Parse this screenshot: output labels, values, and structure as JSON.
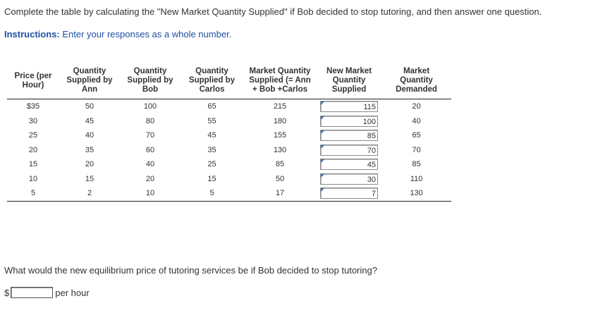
{
  "prompt": "Complete the table by calculating the \"New Market Quantity Supplied\" if Bob decided to stop tutoring, and then answer one question.",
  "instructions": {
    "label": "Instructions:",
    "text": "Enter your responses as a whole number."
  },
  "table": {
    "headers": [
      "Price (per\nHour)",
      "Quantity\nSupplied by\nAnn",
      "Quantity\nSupplied by\nBob",
      "Quantity\nSupplied by\nCarlos",
      "Market Quantity\nSupplied (= Ann\n+ Bob +Carlos",
      "New Market\nQuantity\nSupplied",
      "Market\nQuantity\nDemanded"
    ],
    "rows": [
      {
        "price": "$35",
        "ann": "50",
        "bob": "100",
        "carlos": "65",
        "market": "215",
        "new_market": "115",
        "demanded": "20"
      },
      {
        "price": "30",
        "ann": "45",
        "bob": "80",
        "carlos": "55",
        "market": "180",
        "new_market": "100",
        "demanded": "40"
      },
      {
        "price": "25",
        "ann": "40",
        "bob": "70",
        "carlos": "45",
        "market": "155",
        "new_market": "85",
        "demanded": "65"
      },
      {
        "price": "20",
        "ann": "35",
        "bob": "60",
        "carlos": "35",
        "market": "130",
        "new_market": "70",
        "demanded": "70"
      },
      {
        "price": "15",
        "ann": "20",
        "bob": "40",
        "carlos": "25",
        "market": "85",
        "new_market": "45",
        "demanded": "85"
      },
      {
        "price": "10",
        "ann": "15",
        "bob": "20",
        "carlos": "15",
        "market": "50",
        "new_market": "30",
        "demanded": "110"
      },
      {
        "price": "5",
        "ann": "2",
        "bob": "10",
        "carlos": "5",
        "market": "17",
        "new_market": "7",
        "demanded": "130"
      }
    ]
  },
  "question": {
    "text": "What would the new equilibrium price of tutoring services be if Bob decided to stop tutoring?",
    "currency_symbol": "$",
    "value": "",
    "unit_label": "per hour"
  },
  "colors": {
    "instructions": "#1f4fa3",
    "text": "#333333",
    "rule": "#222222",
    "input_marker": "#3a6fc4"
  }
}
